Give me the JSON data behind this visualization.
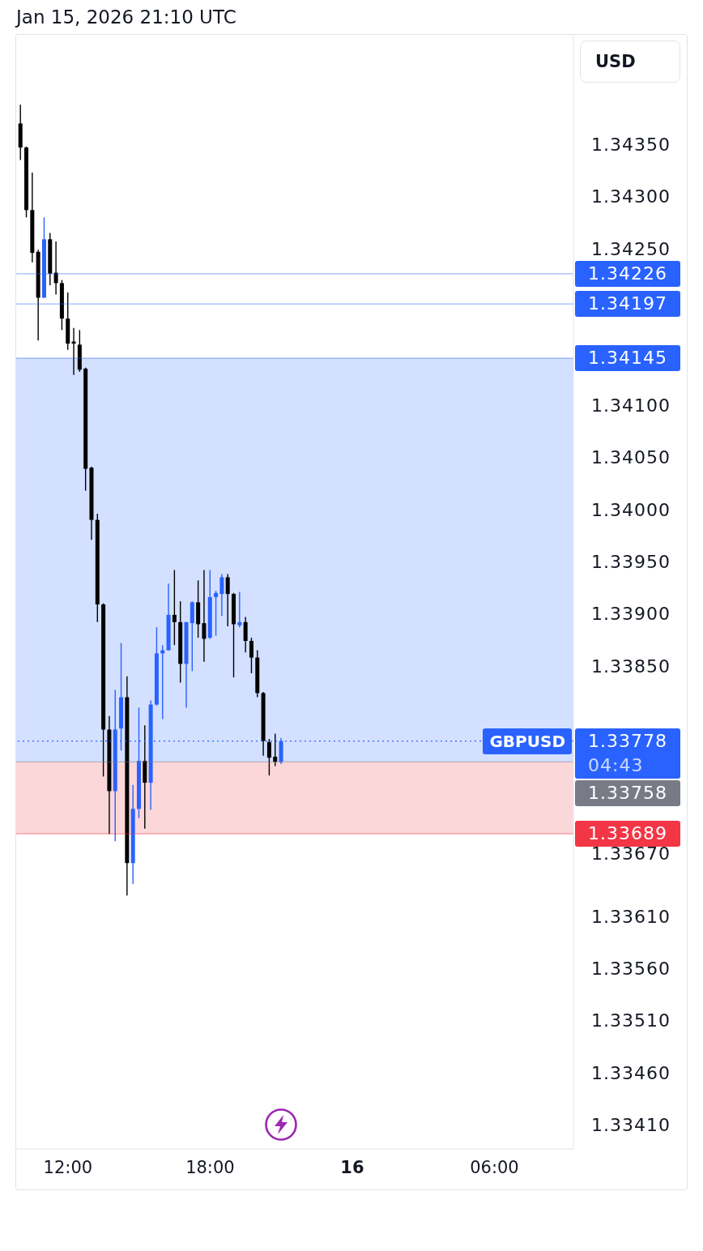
{
  "chart_data": {
    "type": "candlestick",
    "title": "Jan 15, 2026 21:10 UTC",
    "ylabel": "USD",
    "series": [
      {
        "name": "GBPUSD",
        "x": [
          "2026-01-15T10:00",
          "2026-01-15T10:15",
          "2026-01-15T10:30",
          "2026-01-15T10:45",
          "2026-01-15T11:00",
          "2026-01-15T11:15",
          "2026-01-15T11:30",
          "2026-01-15T11:45",
          "2026-01-15T12:00",
          "2026-01-15T12:15",
          "2026-01-15T12:30",
          "2026-01-15T12:45",
          "2026-01-15T13:00",
          "2026-01-15T13:15",
          "2026-01-15T13:30",
          "2026-01-15T13:45",
          "2026-01-15T14:00",
          "2026-01-15T14:15",
          "2026-01-15T14:30",
          "2026-01-15T14:45",
          "2026-01-15T15:00",
          "2026-01-15T15:15",
          "2026-01-15T15:30",
          "2026-01-15T15:45",
          "2026-01-15T16:00",
          "2026-01-15T16:15",
          "2026-01-15T16:30",
          "2026-01-15T16:45",
          "2026-01-15T17:00",
          "2026-01-15T17:15",
          "2026-01-15T17:30",
          "2026-01-15T17:45",
          "2026-01-15T18:00",
          "2026-01-15T18:15",
          "2026-01-15T18:30",
          "2026-01-15T18:45",
          "2026-01-15T19:00",
          "2026-01-15T19:15",
          "2026-01-15T19:30",
          "2026-01-15T19:45",
          "2026-01-15T20:00",
          "2026-01-15T20:15",
          "2026-01-15T20:30",
          "2026-01-15T20:45",
          "2026-01-15T21:00"
        ],
        "ohlc": [
          [
            1.3437,
            1.34388,
            1.34335,
            1.34347
          ],
          [
            1.34347,
            1.34348,
            1.3428,
            1.34287
          ],
          [
            1.34287,
            1.34323,
            1.34237,
            1.34246
          ],
          [
            1.34247,
            1.34249,
            1.34162,
            1.34203
          ],
          [
            1.34203,
            1.3428,
            1.34203,
            1.34259
          ],
          [
            1.34259,
            1.34265,
            1.34215,
            1.34226
          ],
          [
            1.34227,
            1.34257,
            1.34206,
            1.34217
          ],
          [
            1.34217,
            1.3422,
            1.34172,
            1.34183
          ],
          [
            1.34183,
            1.34208,
            1.34153,
            1.34159
          ],
          [
            1.34161,
            1.34174,
            1.34129,
            1.34159
          ],
          [
            1.34158,
            1.34172,
            1.34132,
            1.34134
          ],
          [
            1.34135,
            1.34136,
            1.34018,
            1.34039
          ],
          [
            1.3404,
            1.34041,
            1.33971,
            1.3399
          ],
          [
            1.3399,
            1.33996,
            1.33892,
            1.33909
          ],
          [
            1.33909,
            1.3391,
            1.33744,
            1.33789
          ],
          [
            1.33789,
            1.33802,
            1.33689,
            1.3373
          ],
          [
            1.3373,
            1.33827,
            1.33682,
            1.33789
          ],
          [
            1.3379,
            1.33872,
            1.33769,
            1.3382
          ],
          [
            1.3382,
            1.3384,
            1.3363,
            1.33661
          ],
          [
            1.33661,
            1.33736,
            1.33641,
            1.33713
          ],
          [
            1.33713,
            1.3381,
            1.33704,
            1.33759
          ],
          [
            1.33759,
            1.33793,
            1.33694,
            1.33738
          ],
          [
            1.33738,
            1.33817,
            1.33712,
            1.33813
          ],
          [
            1.33813,
            1.33887,
            1.33812,
            1.33862
          ],
          [
            1.33862,
            1.3387,
            1.33799,
            1.33865
          ],
          [
            1.33865,
            1.33929,
            1.33865,
            1.33899
          ],
          [
            1.33899,
            1.33942,
            1.3387,
            1.33892
          ],
          [
            1.33892,
            1.33912,
            1.33834,
            1.33852
          ],
          [
            1.33852,
            1.33892,
            1.3381,
            1.33892
          ],
          [
            1.33891,
            1.33912,
            1.33845,
            1.33911
          ],
          [
            1.33911,
            1.33932,
            1.33877,
            1.3389
          ],
          [
            1.33891,
            1.33942,
            1.33854,
            1.33876
          ],
          [
            1.33877,
            1.33942,
            1.33876,
            1.33916
          ],
          [
            1.33916,
            1.33922,
            1.33879,
            1.3392
          ],
          [
            1.33919,
            1.33938,
            1.33898,
            1.33935
          ],
          [
            1.33935,
            1.33938,
            1.33888,
            1.33919
          ],
          [
            1.33919,
            1.3392,
            1.33839,
            1.3389
          ],
          [
            1.33889,
            1.33921,
            1.33887,
            1.33892
          ],
          [
            1.33892,
            1.33897,
            1.33863,
            1.33874
          ],
          [
            1.33874,
            1.33877,
            1.33843,
            1.33858
          ],
          [
            1.33858,
            1.33865,
            1.3382,
            1.33824
          ],
          [
            1.33824,
            1.33825,
            1.33764,
            1.33778
          ],
          [
            1.33777,
            1.3378,
            1.33745,
            1.33762
          ],
          [
            1.33763,
            1.33785,
            1.33754,
            1.33758
          ],
          [
            1.33758,
            1.33781,
            1.33756,
            1.33778
          ]
        ],
        "colors": [
          "#000000",
          "#000000",
          "#000000",
          "#000000",
          "#2962ff",
          "#000000",
          "#000000",
          "#000000",
          "#000000",
          "#000000",
          "#000000",
          "#000000",
          "#000000",
          "#000000",
          "#000000",
          "#000000",
          "#2962ff",
          "#2962ff",
          "#000000",
          "#2962ff",
          "#2962ff",
          "#000000",
          "#2962ff",
          "#2962ff",
          "#2962ff",
          "#2962ff",
          "#000000",
          "#000000",
          "#2962ff",
          "#2962ff",
          "#000000",
          "#000000",
          "#2962ff",
          "#2962ff",
          "#2962ff",
          "#000000",
          "#000000",
          "#2962ff",
          "#000000",
          "#000000",
          "#000000",
          "#000000",
          "#000000",
          "#000000",
          "#2962ff"
        ]
      }
    ],
    "xlim": [
      "2026-01-15T09:49",
      "2026-01-16T09:20"
    ],
    "xticks": [
      {
        "value": "2026-01-15T12:00",
        "label": "12:00"
      },
      {
        "value": "2026-01-15T18:00",
        "label": "18:00"
      },
      {
        "value": "2026-01-16T00:00",
        "label": "16"
      },
      {
        "value": "2026-01-16T06:00",
        "label": "06:00"
      }
    ],
    "ylim": [
      1.33387,
      1.34455
    ],
    "yticks": [
      {
        "value": 1.3435,
        "label": "1.34350"
      },
      {
        "value": 1.343,
        "label": "1.34300"
      },
      {
        "value": 1.3425,
        "label": "1.34250"
      },
      {
        "value": 1.341,
        "label": "1.34100"
      },
      {
        "value": 1.3405,
        "label": "1.34050"
      },
      {
        "value": 1.34,
        "label": "1.34000"
      },
      {
        "value": 1.3395,
        "label": "1.33950"
      },
      {
        "value": 1.339,
        "label": "1.33900"
      },
      {
        "value": 1.3385,
        "label": "1.33850"
      },
      {
        "value": 1.3367,
        "label": "1.33670"
      },
      {
        "value": 1.3361,
        "label": "1.33610"
      },
      {
        "value": 1.3356,
        "label": "1.33560"
      },
      {
        "value": 1.3351,
        "label": "1.33510"
      },
      {
        "value": 1.3346,
        "label": "1.33460"
      },
      {
        "value": 1.3341,
        "label": "1.33410"
      }
    ],
    "bands": [
      {
        "axis": "y",
        "from": 1.33758,
        "to": 1.34145,
        "color": "#2962ff"
      },
      {
        "axis": "y",
        "from": 1.33689,
        "to": 1.33758,
        "color": "#f23645"
      }
    ],
    "ref_lines": [
      {
        "axis": "y",
        "value": 1.33778,
        "label": "1.33778",
        "color": "#2962ff",
        "line_style": "dotted"
      },
      {
        "axis": "y",
        "value": 1.34226,
        "label": "1.34226",
        "color": "#2962ff"
      },
      {
        "axis": "y",
        "value": 1.34197,
        "label": "1.34197",
        "color": "#2962ff"
      },
      {
        "axis": "y",
        "value": 1.34145,
        "label": "1.34145",
        "color": "#2962ff"
      },
      {
        "axis": "y",
        "value": 1.33758,
        "label": "1.33758",
        "color": "#787b86"
      },
      {
        "axis": "y",
        "value": 1.33689,
        "label": "1.33689",
        "color": "#f23645"
      }
    ],
    "annotations": [
      "04:43"
    ]
  }
}
